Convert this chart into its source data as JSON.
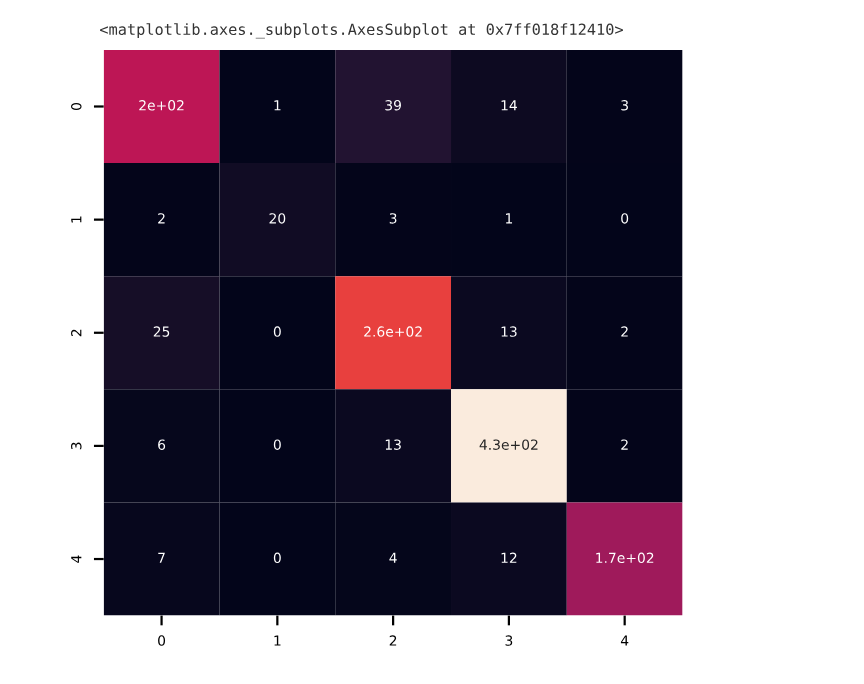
{
  "chart_data": {
    "type": "heatmap",
    "annotations": [
      "<matplotlib.axes._subplots.AxesSubplot at 0x7ff018f12410>"
    ],
    "categories": [
      "0",
      "1",
      "2",
      "3",
      "4"
    ],
    "y_categories": [
      "0",
      "1",
      "2",
      "3",
      "4"
    ],
    "cells": [
      [
        200,
        1,
        39,
        14,
        3
      ],
      [
        2,
        20,
        3,
        1,
        0
      ],
      [
        25,
        0,
        260,
        13,
        2
      ],
      [
        6,
        0,
        13,
        430,
        2
      ],
      [
        7,
        0,
        4,
        12,
        170
      ]
    ],
    "cell_labels": [
      [
        "2e+02",
        "1",
        "39",
        "14",
        "3"
      ],
      [
        "2",
        "20",
        "3",
        "1",
        "0"
      ],
      [
        "25",
        "0",
        "2.6e+02",
        "13",
        "2"
      ],
      [
        "6",
        "0",
        "13",
        "4.3e+02",
        "2"
      ],
      [
        "7",
        "0",
        "4",
        "12",
        "1.7e+02"
      ]
    ]
  }
}
